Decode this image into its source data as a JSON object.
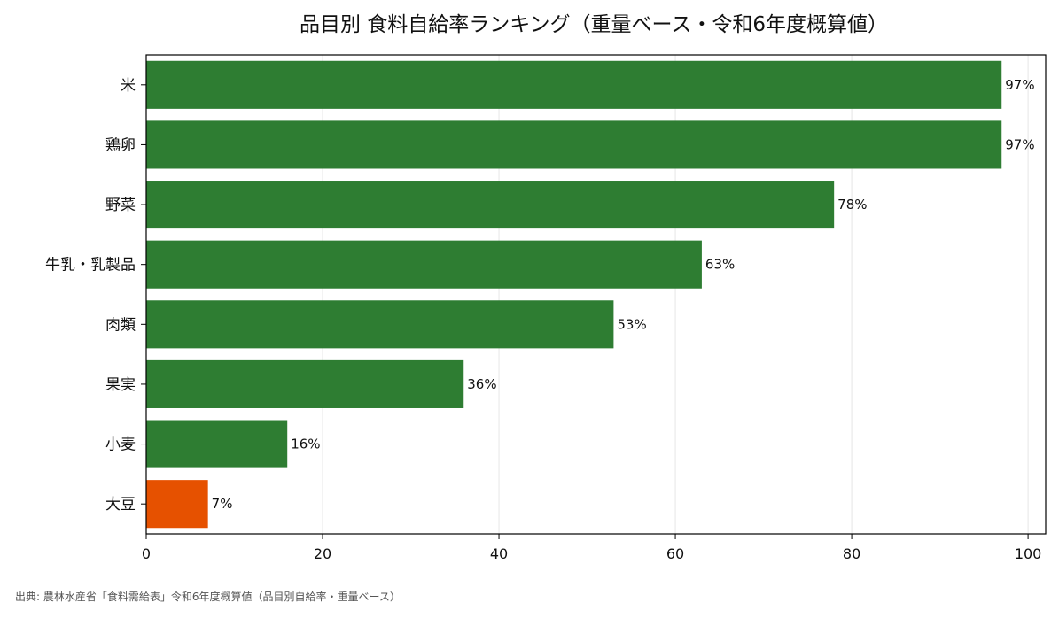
{
  "chart_data": {
    "type": "bar",
    "orientation": "horizontal",
    "title": "品目別 食料自給率ランキング（重量ベース・令和6年度概算値）",
    "categories": [
      "米",
      "鶏卵",
      "野菜",
      "牛乳・乳製品",
      "肉類",
      "果実",
      "小麦",
      "大豆"
    ],
    "values": [
      97,
      97,
      78,
      63,
      53,
      36,
      16,
      7
    ],
    "value_labels": [
      "97%",
      "97%",
      "78%",
      "63%",
      "53%",
      "36%",
      "16%",
      "7%"
    ],
    "xlim": [
      0,
      102
    ],
    "xticks": [
      0,
      20,
      40,
      60,
      80,
      100
    ],
    "xtick_labels": [
      "0",
      "20",
      "40",
      "60",
      "80",
      "100"
    ],
    "grid": "vertical",
    "legend": "none",
    "colors": {
      "default_bar": "#2e7d32",
      "highlight_bar": "#e65100",
      "highlight_category": "大豆",
      "grid": "#e6e6e6",
      "axis": "#000000"
    }
  },
  "source": "出典: 農林水産省「食料需給表」令和6年度概算値（品目別自給率・重量ベース）"
}
